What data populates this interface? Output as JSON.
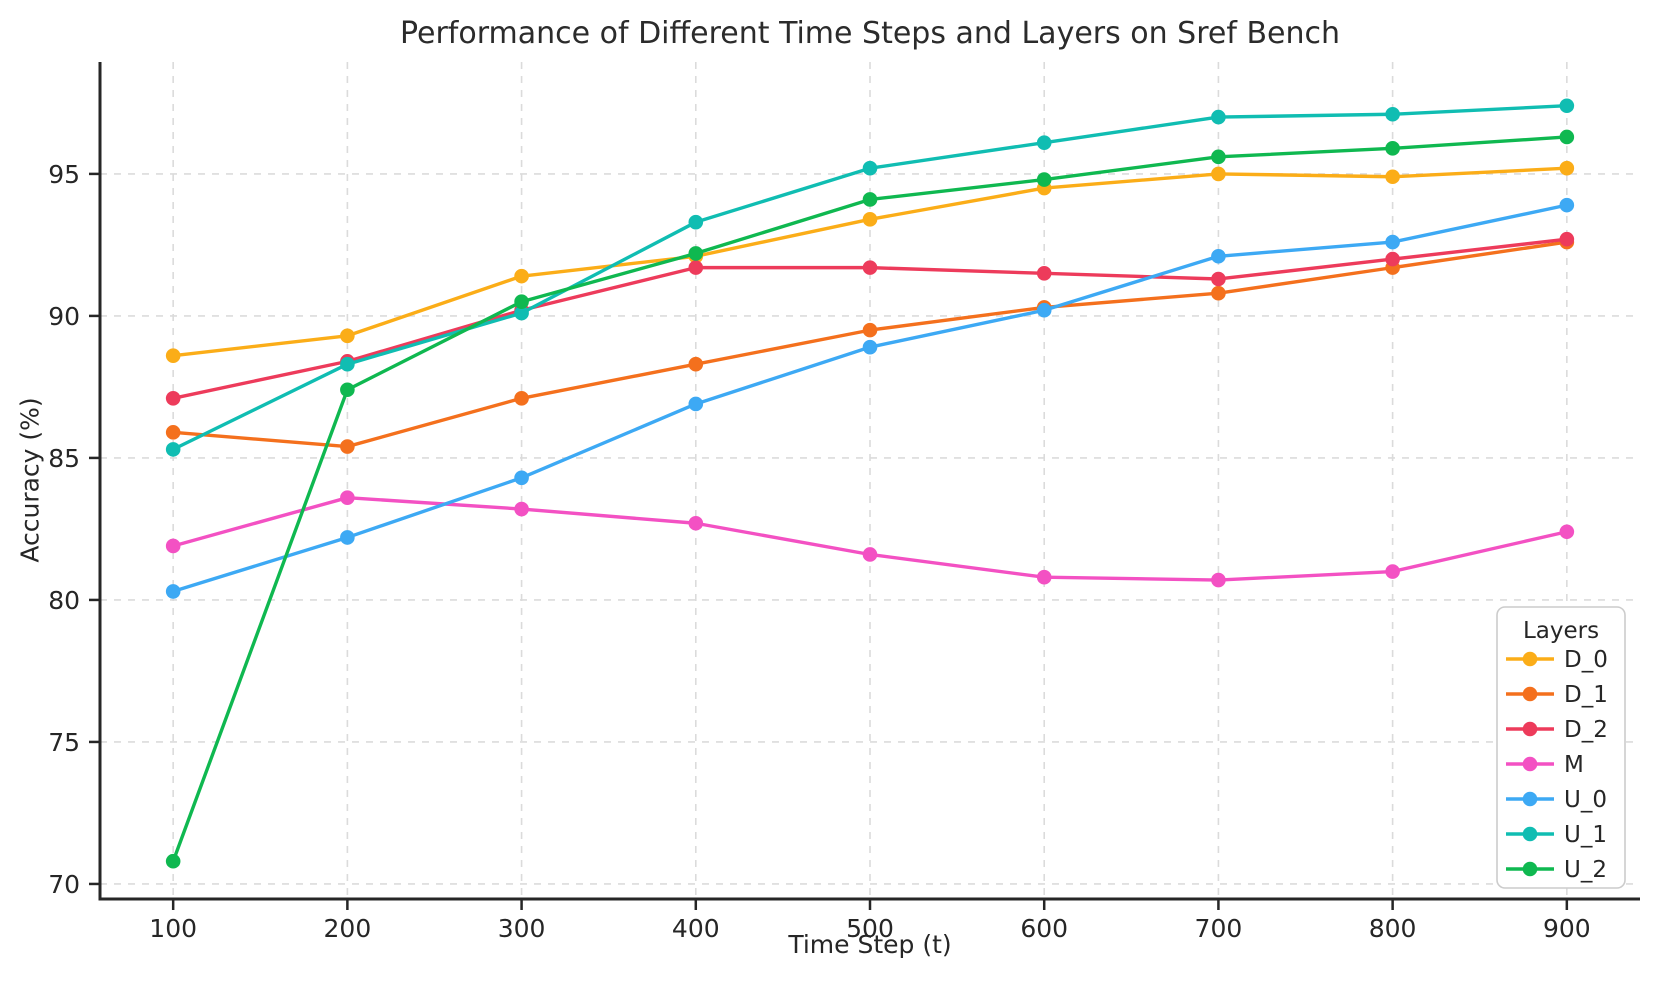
{
  "chart_data": {
    "type": "line",
    "title": "Performance of Different Time Steps and Layers on Sref Bench",
    "xlabel": "Time Step (t)",
    "ylabel": "Accuracy (%)",
    "x": [
      100,
      200,
      300,
      400,
      500,
      600,
      700,
      800,
      900
    ],
    "xtick_labels": [
      "100",
      "200",
      "300",
      "400",
      "500",
      "600",
      "700",
      "800",
      "900"
    ],
    "yticks": [
      70,
      75,
      80,
      85,
      90,
      95
    ],
    "ytick_labels": [
      "70",
      "75",
      "80",
      "85",
      "90",
      "95"
    ],
    "xlim": [
      58,
      942
    ],
    "ylim": [
      69.47,
      98.94
    ],
    "grid": true,
    "grid_style": "dashed",
    "legend": {
      "title": "Layers",
      "position": "lower right"
    },
    "series": [
      {
        "name": "D_0",
        "color": "#FBAD18",
        "values": [
          88.6,
          89.3,
          91.4,
          92.1,
          93.4,
          94.5,
          95.0,
          94.9,
          95.2
        ]
      },
      {
        "name": "D_1",
        "color": "#F4701D",
        "values": [
          85.9,
          85.4,
          87.1,
          88.3,
          89.5,
          90.3,
          90.8,
          91.7,
          92.6
        ]
      },
      {
        "name": "D_2",
        "color": "#ED3B5B",
        "values": [
          87.1,
          88.4,
          90.2,
          91.7,
          91.7,
          91.5,
          91.3,
          92.0,
          92.7
        ]
      },
      {
        "name": "M",
        "color": "#F351C3",
        "values": [
          81.9,
          83.6,
          83.2,
          82.7,
          81.6,
          80.8,
          80.7,
          81.0,
          82.4
        ]
      },
      {
        "name": "U_0",
        "color": "#3DA9F4",
        "values": [
          80.3,
          82.2,
          84.3,
          86.9,
          88.9,
          90.2,
          92.1,
          92.6,
          93.9
        ]
      },
      {
        "name": "U_1",
        "color": "#10BDB2",
        "values": [
          85.3,
          88.3,
          90.1,
          93.3,
          95.2,
          96.1,
          97.0,
          97.1,
          97.4
        ]
      },
      {
        "name": "U_2",
        "color": "#0FB850",
        "values": [
          70.8,
          87.4,
          90.5,
          92.2,
          94.1,
          94.8,
          95.6,
          95.9,
          96.3
        ]
      }
    ],
    "axis_color": "#262626",
    "grid_color": "#DBDBDB"
  }
}
